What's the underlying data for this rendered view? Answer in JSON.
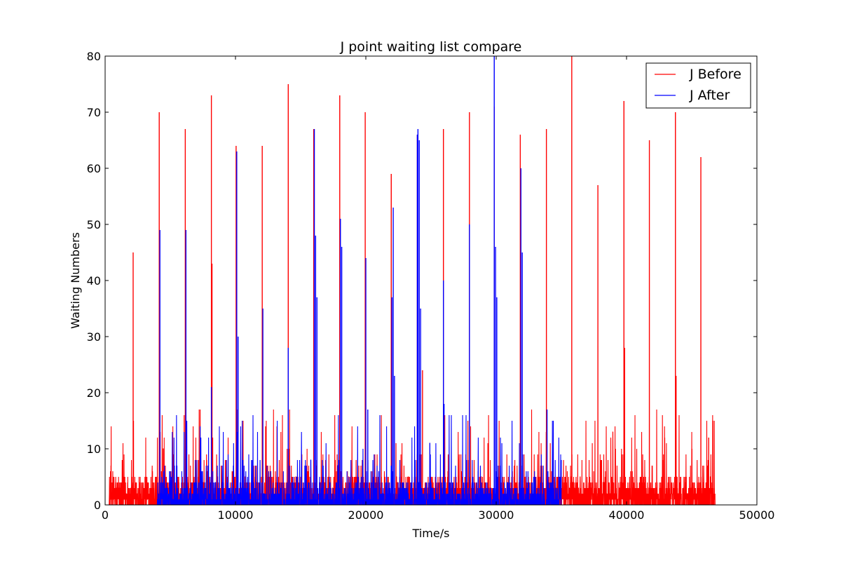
{
  "chart_data": {
    "type": "line",
    "title": "J point waiting list compare",
    "xlabel": "Time/s",
    "ylabel": "Waiting Numbers",
    "xlim": [
      0,
      50000
    ],
    "ylim": [
      0,
      80
    ],
    "xticks": [
      0,
      10000,
      20000,
      30000,
      40000,
      50000
    ],
    "xtick_labels": [
      "0",
      "10000",
      "20000",
      "30000",
      "40000",
      "50000"
    ],
    "yticks": [
      0,
      10,
      20,
      30,
      40,
      50,
      60,
      70,
      80
    ],
    "ytick_labels": [
      "0",
      "10",
      "20",
      "30",
      "40",
      "50",
      "60",
      "70",
      "80"
    ],
    "grid": false,
    "legend_position": "top-right",
    "series": [
      {
        "name": "J Before",
        "color": "#ff0000",
        "baseline_range": [
          300,
          46800
        ],
        "peaks": [
          {
            "x": 2150,
            "y": 45
          },
          {
            "x": 4150,
            "y": 70
          },
          {
            "x": 6150,
            "y": 67
          },
          {
            "x": 8150,
            "y": 73
          },
          {
            "x": 8200,
            "y": 43
          },
          {
            "x": 10050,
            "y": 64
          },
          {
            "x": 12050,
            "y": 64
          },
          {
            "x": 14050,
            "y": 75
          },
          {
            "x": 16000,
            "y": 67
          },
          {
            "x": 18000,
            "y": 73
          },
          {
            "x": 19950,
            "y": 70
          },
          {
            "x": 21950,
            "y": 59
          },
          {
            "x": 23950,
            "y": 66
          },
          {
            "x": 24350,
            "y": 24
          },
          {
            "x": 25950,
            "y": 67
          },
          {
            "x": 27950,
            "y": 70
          },
          {
            "x": 29850,
            "y": 71
          },
          {
            "x": 31850,
            "y": 66
          },
          {
            "x": 33850,
            "y": 67
          },
          {
            "x": 35800,
            "y": 80
          },
          {
            "x": 37800,
            "y": 57
          },
          {
            "x": 39800,
            "y": 72
          },
          {
            "x": 39850,
            "y": 28
          },
          {
            "x": 41750,
            "y": 65
          },
          {
            "x": 43750,
            "y": 70
          },
          {
            "x": 43800,
            "y": 23
          },
          {
            "x": 45700,
            "y": 62
          },
          {
            "x": 46300,
            "y": 12
          }
        ]
      },
      {
        "name": "J After",
        "color": "#0000ff",
        "baseline_range": [
          4000,
          35000
        ],
        "peaks": [
          {
            "x": 4200,
            "y": 49
          },
          {
            "x": 6200,
            "y": 49
          },
          {
            "x": 8150,
            "y": 21
          },
          {
            "x": 10100,
            "y": 63
          },
          {
            "x": 10200,
            "y": 30
          },
          {
            "x": 12100,
            "y": 35
          },
          {
            "x": 14050,
            "y": 28
          },
          {
            "x": 16050,
            "y": 67
          },
          {
            "x": 16150,
            "y": 48
          },
          {
            "x": 16250,
            "y": 37
          },
          {
            "x": 18050,
            "y": 51
          },
          {
            "x": 18150,
            "y": 46
          },
          {
            "x": 20000,
            "y": 44
          },
          {
            "x": 20150,
            "y": 17
          },
          {
            "x": 22000,
            "y": 37
          },
          {
            "x": 22100,
            "y": 53
          },
          {
            "x": 22200,
            "y": 23
          },
          {
            "x": 23950,
            "y": 66
          },
          {
            "x": 24000,
            "y": 67
          },
          {
            "x": 24100,
            "y": 65
          },
          {
            "x": 24200,
            "y": 35
          },
          {
            "x": 25950,
            "y": 40
          },
          {
            "x": 26000,
            "y": 18
          },
          {
            "x": 27950,
            "y": 50
          },
          {
            "x": 29850,
            "y": 80
          },
          {
            "x": 29950,
            "y": 46
          },
          {
            "x": 30050,
            "y": 37
          },
          {
            "x": 31900,
            "y": 60
          },
          {
            "x": 32000,
            "y": 45
          },
          {
            "x": 33900,
            "y": 17
          }
        ]
      }
    ]
  }
}
